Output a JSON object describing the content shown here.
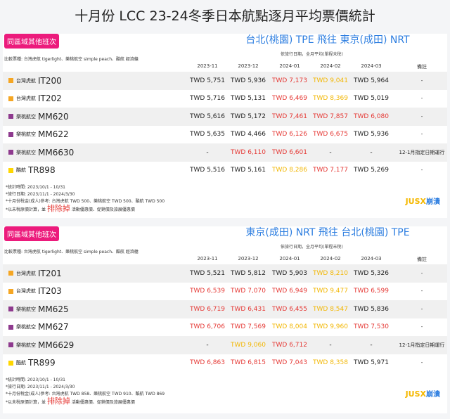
{
  "title": "十月份 LCC 23-24冬季日本航點逐月平均票價統計",
  "colors": {
    "red": "#e53935",
    "yellow": "#f2b705",
    "tigerair": "#f5a623",
    "peach": "#8e3a8e",
    "scoot": "#ffd700",
    "accent": "#2d7ee0",
    "badge": "#ec1b7c"
  },
  "headers": [
    "2023-11",
    "2023-12",
    "2024-01",
    "2024-02",
    "2024-03",
    "備註"
  ],
  "sections": [
    {
      "badge": "同區域其他班次",
      "route": "台北(桃園) TPE 飛往 東京(成田) NRT",
      "sub": "依旅行日期，全月平均(單程未稅)",
      "compare": "比較票種: 台灣虎航 tigerlight、樂桃航空 simple peach、酷航 經濟艙",
      "rows": [
        {
          "airline": "台灣虎航",
          "sq": "tigerair",
          "flight": "IT200",
          "cells": [
            [
              "TWD 5,751",
              "n"
            ],
            [
              "TWD 5,936",
              "n"
            ],
            [
              "TWD 7,173",
              "r"
            ],
            [
              "TWD 9,041",
              "y"
            ],
            [
              "TWD 5,964",
              "n"
            ]
          ],
          "remark": "-"
        },
        {
          "airline": "台灣虎航",
          "sq": "tigerair",
          "flight": "IT202",
          "cells": [
            [
              "TWD 5,716",
              "n"
            ],
            [
              "TWD 5,131",
              "n"
            ],
            [
              "TWD 6,469",
              "r"
            ],
            [
              "TWD 8,369",
              "y"
            ],
            [
              "TWD 5,019",
              "n"
            ]
          ],
          "remark": "-"
        },
        {
          "airline": "樂桃航空",
          "sq": "peach",
          "flight": "MM620",
          "cells": [
            [
              "TWD 5,616",
              "n"
            ],
            [
              "TWD 5,172",
              "n"
            ],
            [
              "TWD 7,461",
              "r"
            ],
            [
              "TWD 7,857",
              "r"
            ],
            [
              "TWD 6,080",
              "r"
            ]
          ],
          "remark": "-"
        },
        {
          "airline": "樂桃航空",
          "sq": "peach",
          "flight": "MM622",
          "cells": [
            [
              "TWD 5,635",
              "n"
            ],
            [
              "TWD 4,466",
              "n"
            ],
            [
              "TWD 6,126",
              "r"
            ],
            [
              "TWD 6,675",
              "r"
            ],
            [
              "TWD 5,936",
              "n"
            ]
          ],
          "remark": "-"
        },
        {
          "airline": "樂桃航空",
          "sq": "peach",
          "flight": "MM6630",
          "cells": [
            [
              "-",
              "n"
            ],
            [
              "TWD 6,110",
              "r"
            ],
            [
              "TWD 6,601",
              "r"
            ],
            [
              "-",
              "n"
            ],
            [
              "-",
              "n"
            ]
          ],
          "remark": "12-1月指定日期運行"
        },
        {
          "airline": "酷航",
          "sq": "scoot",
          "flight": "TR898",
          "cells": [
            [
              "TWD 5,516",
              "n"
            ],
            [
              "TWD 5,161",
              "n"
            ],
            [
              "TWD 8,286",
              "y"
            ],
            [
              "TWD 7,177",
              "r"
            ],
            [
              "TWD 5,269",
              "n"
            ]
          ],
          "remark": "-"
        }
      ],
      "notes": [
        "*統計時間: 2023/10/1 - 10/31",
        "*旅行日期: 2023/11/1 - 2024/3/30",
        "*十月份稅金(成人)參考: 台灣虎航 TWD 500、樂桃航空 TWD 500、酷航 TWD 500"
      ],
      "note4": {
        "pre": "*以未稅原價計算，並",
        "em": "排除掉",
        "post": "活動優惠價、促銷價及旅展優惠價"
      },
      "logo": "JUSX",
      "logo2": "崩潰"
    },
    {
      "badge": "同區域其他班次",
      "route": "東京(成田) NRT 飛往 台北(桃園) TPE",
      "sub": "依旅行日期，全月平均(單程未稅)",
      "compare": "比較票種: 台灣虎航 tigerlight、樂桃航空 simple peach、酷航 經濟艙",
      "rows": [
        {
          "airline": "台灣虎航",
          "sq": "tigerair",
          "flight": "IT201",
          "cells": [
            [
              "TWD 5,521",
              "n"
            ],
            [
              "TWD 5,812",
              "n"
            ],
            [
              "TWD 5,903",
              "n"
            ],
            [
              "TWD 8,210",
              "y"
            ],
            [
              "TWD 5,326",
              "n"
            ]
          ],
          "remark": "-"
        },
        {
          "airline": "台灣虎航",
          "sq": "tigerair",
          "flight": "IT203",
          "cells": [
            [
              "TWD 6,539",
              "r"
            ],
            [
              "TWD 7,070",
              "r"
            ],
            [
              "TWD 6,949",
              "r"
            ],
            [
              "TWD 9,477",
              "y"
            ],
            [
              "TWD 6,599",
              "r"
            ]
          ],
          "remark": "-"
        },
        {
          "airline": "樂桃航空",
          "sq": "peach",
          "flight": "MM625",
          "cells": [
            [
              "TWD 6,719",
              "r"
            ],
            [
              "TWD 6,431",
              "r"
            ],
            [
              "TWD 6,455",
              "r"
            ],
            [
              "TWD 8,547",
              "y"
            ],
            [
              "TWD 5,836",
              "n"
            ]
          ],
          "remark": "-"
        },
        {
          "airline": "樂桃航空",
          "sq": "peach",
          "flight": "MM627",
          "cells": [
            [
              "TWD 6,706",
              "r"
            ],
            [
              "TWD 7,569",
              "r"
            ],
            [
              "TWD 8,004",
              "y"
            ],
            [
              "TWD 9,960",
              "y"
            ],
            [
              "TWD 7,530",
              "r"
            ]
          ],
          "remark": "-"
        },
        {
          "airline": "樂桃航空",
          "sq": "peach",
          "flight": "MM6629",
          "cells": [
            [
              "-",
              "n"
            ],
            [
              "TWD 9,060",
              "y"
            ],
            [
              "TWD 6,712",
              "r"
            ],
            [
              "-",
              "n"
            ],
            [
              "-",
              "n"
            ]
          ],
          "remark": "12-1月指定日期運行"
        },
        {
          "airline": "酷航",
          "sq": "scoot",
          "flight": "TR899",
          "cells": [
            [
              "TWD 6,863",
              "r"
            ],
            [
              "TWD 6,815",
              "r"
            ],
            [
              "TWD 7,043",
              "r"
            ],
            [
              "TWD 8,358",
              "y"
            ],
            [
              "TWD 5,971",
              "n"
            ]
          ],
          "remark": "-"
        }
      ],
      "notes": [
        "*統計時間: 2023/10/1 - 10/31",
        "*旅行日期: 2023/11/1 - 2024/3/30",
        "*十月份稅金(成人)參考: 台灣虎航 TWD 858、樂桃航空 TWD 910、酷航 TWD 869"
      ],
      "note4": {
        "pre": "*以未稅原價計算，並",
        "em": "排除掉",
        "post": "活動優惠價、促銷價及旅展優惠價"
      },
      "logo": "JUSX",
      "logo2": "崩潰"
    }
  ]
}
